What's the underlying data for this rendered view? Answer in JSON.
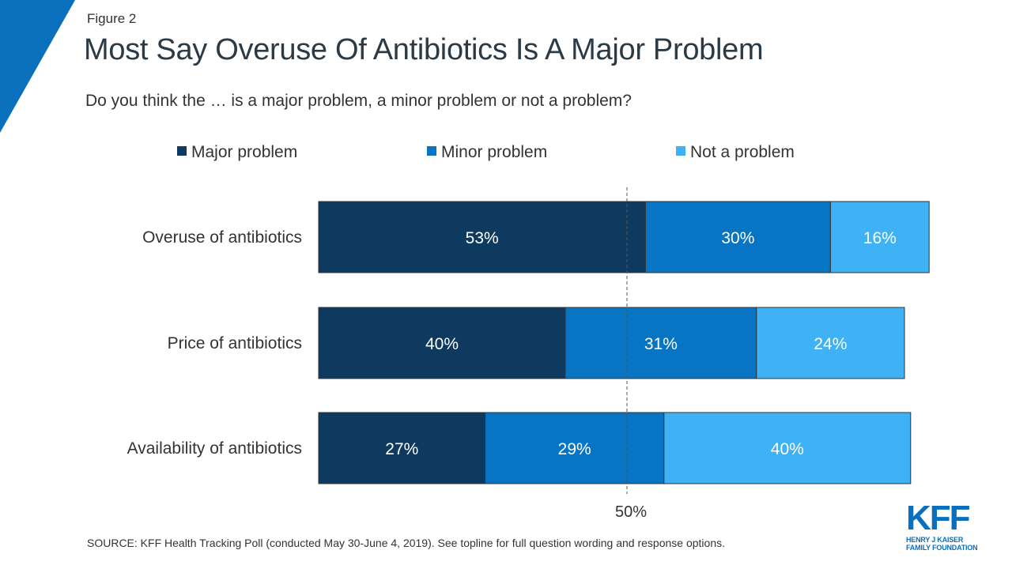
{
  "figure_label": "Figure 2",
  "title": "Most Say Overuse Of Antibiotics Is A Major Problem",
  "subtitle": "Do you think the … is a major problem, a minor problem or not a problem?",
  "source": "SOURCE: KFF Health Tracking Poll (conducted May 30-June 4, 2019). See topline for full question wording and response options.",
  "logo": {
    "mark": "KFF",
    "line1": "HENRY J KAISER",
    "line2": "FAMILY FOUNDATION"
  },
  "colors": {
    "corner": "#0a6fbd",
    "major": "#0f3a5f",
    "minor": "#0874c4",
    "not": "#3fb1f5",
    "reference": "#555555"
  },
  "chart_data": {
    "type": "bar",
    "orientation": "horizontal",
    "stacked": true,
    "categories": [
      "Overuse of antibiotics",
      "Price of antibiotics",
      "Availability of antibiotics"
    ],
    "series": [
      {
        "name": "Major problem",
        "values": [
          53,
          40,
          27
        ],
        "labels": [
          "53%",
          "40%",
          "27%"
        ]
      },
      {
        "name": "Minor problem",
        "values": [
          30,
          31,
          29
        ],
        "labels": [
          "30%",
          "31%",
          "29%"
        ]
      },
      {
        "name": "Not a problem",
        "values": [
          16,
          24,
          40
        ],
        "labels": [
          "16%",
          "24%",
          "40%"
        ]
      }
    ],
    "xlim": [
      0,
      100
    ],
    "reference_line": {
      "value": 50,
      "label": "50%"
    },
    "legend_position": "top",
    "grid": false
  }
}
